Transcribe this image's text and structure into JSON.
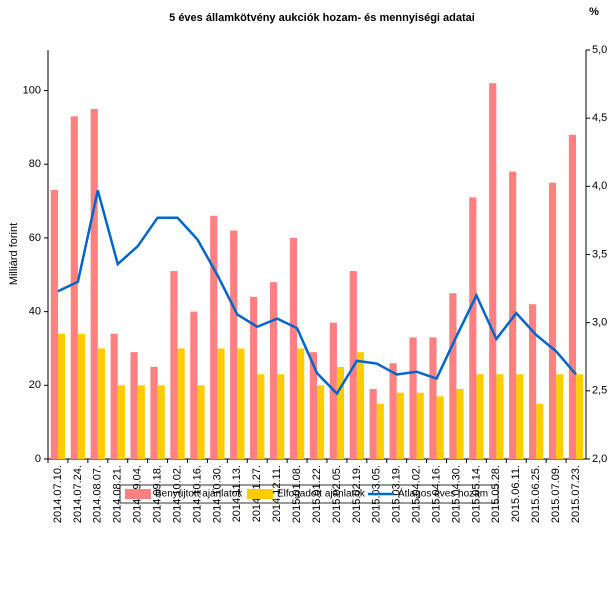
{
  "chart_data": {
    "type": "bar-line",
    "title": "5 éves államkötvény aukciók hozam- és mennyiségi adatai",
    "ylabel": "Milliárd forint",
    "y2label": "%",
    "categories": [
      "2014.07.10.",
      "2014.07.24.",
      "2014.08.07.",
      "2014.08.21.",
      "2014.09.04.",
      "2014.09.18.",
      "2014.10.02.",
      "2014.10.16.",
      "2014.10.30.",
      "2014.11.13.",
      "2014.11.27.",
      "2014.12.11.",
      "2015.01.08.",
      "2015.01.22.",
      "2015.02.05.",
      "2015.02.19.",
      "2015.03.05.",
      "2015.03.19.",
      "2015.04.02.",
      "2015.04.16.",
      "2015.04.30.",
      "2015.05.14.",
      "2015.05.28.",
      "2015.06.11.",
      "2015.06.25.",
      "2015.07.09.",
      "2015.07.23."
    ],
    "series": [
      {
        "name": "Benyújtott ajánlatok",
        "color": "#ff8080",
        "type": "bar",
        "values": [
          73,
          93,
          95,
          34,
          29,
          25,
          51,
          40,
          66,
          62,
          44,
          48,
          60,
          29,
          37,
          51,
          19,
          26,
          33,
          33,
          45,
          71,
          102,
          78,
          42,
          75,
          88
        ]
      },
      {
        "name": "Elfogadott ajánlatok",
        "color": "#ffcc00",
        "type": "bar",
        "values": [
          34,
          34,
          30,
          20,
          20,
          20,
          30,
          20,
          30,
          30,
          23,
          23,
          30,
          20,
          25,
          29,
          15,
          18,
          18,
          17,
          19,
          23,
          23,
          23,
          15,
          23,
          23
        ]
      },
      {
        "name": "Átlagos éves hozam",
        "color": "#0066cc",
        "type": "line",
        "axis": "y2",
        "values": [
          3.23,
          3.3,
          3.97,
          3.43,
          3.56,
          3.77,
          3.77,
          3.61,
          3.35,
          3.06,
          2.97,
          3.03,
          2.96,
          2.63,
          2.48,
          2.72,
          2.7,
          2.62,
          2.64,
          2.59,
          2.9,
          3.2,
          2.88,
          3.07,
          2.91,
          2.79,
          2.62
        ]
      }
    ],
    "ylim": [
      0,
      111
    ],
    "yticks": [
      0,
      20,
      40,
      60,
      80,
      100
    ],
    "y2lim": [
      2,
      5
    ],
    "y2ticks": [
      {
        "value": 2,
        "label": "2,0"
      },
      {
        "value": 2.5,
        "label": "2,5"
      },
      {
        "value": 3,
        "label": "3,0"
      },
      {
        "value": 3.5,
        "label": "3,5"
      },
      {
        "value": 4,
        "label": "4,0"
      },
      {
        "value": 4.5,
        "label": "4,5"
      },
      {
        "value": 5,
        "label": "5,0"
      }
    ]
  }
}
